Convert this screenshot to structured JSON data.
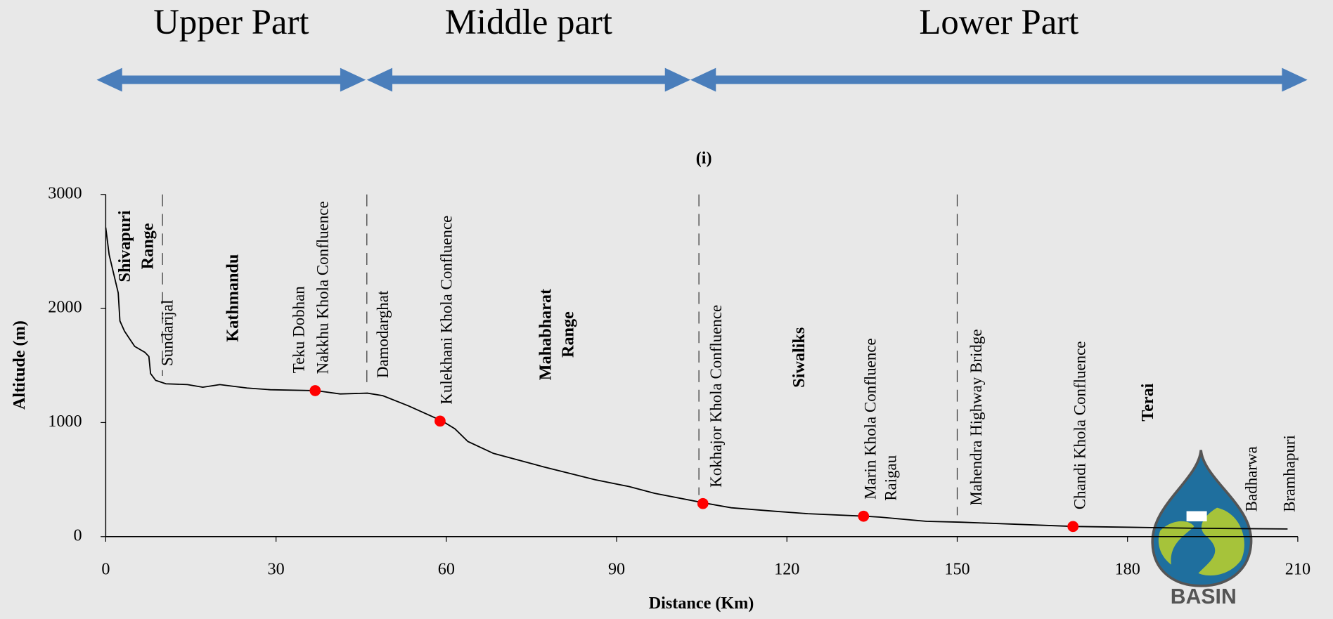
{
  "chart_data": {
    "type": "line",
    "title": "(i)",
    "x_label": "Distance (Km)",
    "y_label": "Altitude (m)",
    "xlim": [
      0,
      210
    ],
    "xticks": [
      0,
      30,
      60,
      90,
      120,
      150,
      180,
      210
    ],
    "ylim": [
      0,
      3000
    ],
    "yticks": [
      0,
      1000,
      2000,
      3000
    ],
    "grid": false,
    "series": [
      {
        "color": "#000000",
        "x": [
          0,
          0.6,
          2.2,
          2.5,
          3.3,
          4.3,
          5.1,
          6.9,
          7.6,
          7.9,
          8.8,
          10.6,
          14.4,
          17.1,
          20.1,
          24.9,
          29.0,
          37.1,
          41.3,
          46.1,
          48.8,
          53.3,
          59.3,
          61.5,
          63.8,
          68.3,
          77.2,
          86.2,
          92.2,
          96.7,
          106,
          110.2,
          117.7,
          123.7,
          133.7,
          136.4,
          144.6,
          150.6,
          170.8,
          180.5,
          191,
          208.2
        ],
        "values": [
          2710,
          2472,
          2137,
          1891,
          1802,
          1727,
          1668,
          1616,
          1579,
          1430,
          1370,
          1340,
          1333,
          1310,
          1333,
          1303,
          1288,
          1280,
          1251,
          1258,
          1236,
          1147,
          1013,
          946,
          834,
          730,
          611,
          499,
          439,
          380,
          290,
          253,
          223,
          201,
          179,
          171,
          134,
          127,
          89,
          82,
          74,
          67
        ]
      },
      {
        "color": "#ff0000",
        "marker": "circle",
        "x": [
          36.9,
          58.9,
          105.2,
          133.5,
          170.4
        ],
        "values": [
          1280,
          1013,
          290,
          179,
          89
        ]
      }
    ],
    "boundaries": [
      10,
      46,
      104.5,
      150
    ],
    "point_labels": [
      {
        "text": "Sundarijal",
        "x": 10.2
      },
      {
        "text": "Teku Dobhan",
        "x": 33.4
      },
      {
        "text": "Nakkhu Khola Confluence",
        "x": 37.6
      },
      {
        "text": "Damodarghat",
        "x": 48.2
      },
      {
        "text": "Kulekhani Khola Confluence",
        "x": 59.4
      },
      {
        "text": "Kokhajor Khola Confluence",
        "x": 106.9
      },
      {
        "text": "Marin Khola Confluence",
        "x": 134.1
      },
      {
        "text": "Raigau",
        "x": 137.7
      },
      {
        "text": "Mahendra Highway Bridge",
        "x": 152.7
      },
      {
        "text": "Chandi Khola Confluence",
        "x": 171
      },
      {
        "text": "Badharwa",
        "x": 201.2
      },
      {
        "text": "Bramhapuri",
        "x": 207.9
      }
    ],
    "region_labels": [
      {
        "text": "Shivapuri",
        "x": 3.6,
        "y": 2546
      },
      {
        "text": "Range",
        "x": 7.6,
        "y": 2546
      },
      {
        "text": "Kathmandu",
        "x": 22.6,
        "y": 2092
      },
      {
        "text": "Mahabharat",
        "x": 77.7,
        "y": 1772
      },
      {
        "text": "Range",
        "x": 81.7,
        "y": 1772
      },
      {
        "text": "Siwaliks",
        "x": 122.4,
        "y": 1571
      },
      {
        "text": "Terai",
        "x": 183.8,
        "y": 1177
      }
    ],
    "sections": [
      {
        "text": "Upper Part",
        "from": -1.6,
        "to": 45.8
      },
      {
        "text": "Middle part",
        "from": 46,
        "to": 103
      },
      {
        "text": "Lower Part",
        "from": 103,
        "to": 211.7
      }
    ],
    "section_color": "#4a7ebb"
  },
  "logo": {
    "text": "BASIN"
  }
}
